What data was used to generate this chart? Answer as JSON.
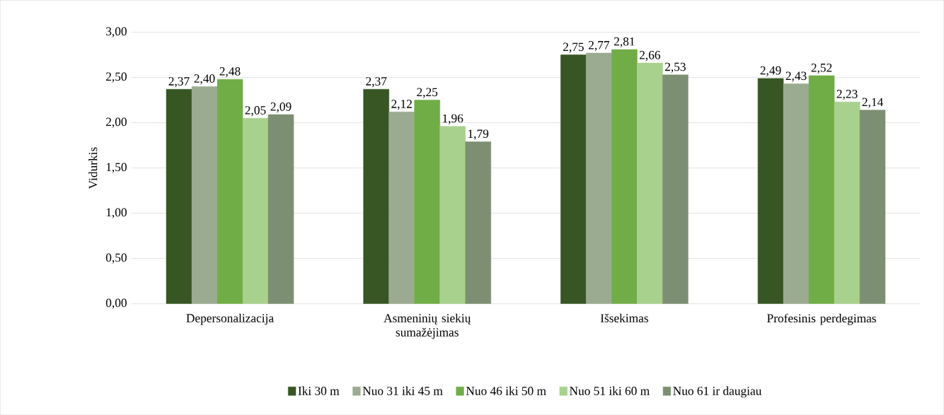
{
  "chart_data": {
    "type": "bar",
    "ylabel": "Vidurkis",
    "categories": [
      "Depersonalizacija",
      "Asmeninių siekių sumažėjimas",
      "Išsekimas",
      "Profesinis perdegimas"
    ],
    "series": [
      {
        "name": "Iki 30 m",
        "color": "#375623",
        "values": [
          2.37,
          2.37,
          2.75,
          2.49
        ],
        "value_labels": [
          "2,37",
          "2,37",
          "2,75",
          "2,49"
        ]
      },
      {
        "name": "Nuo 31 iki 45 m",
        "color": "#9bab91",
        "values": [
          2.4,
          2.12,
          2.77,
          2.43
        ],
        "value_labels": [
          "2,40",
          "2,12",
          "2,77",
          "2,43"
        ]
      },
      {
        "name": "Nuo 46 iki 50 m",
        "color": "#70ad47",
        "values": [
          2.48,
          2.25,
          2.81,
          2.52
        ],
        "value_labels": [
          "2,48",
          "2,25",
          "2,81",
          "2,52"
        ]
      },
      {
        "name": "Nuo 51 iki 60 m",
        "color": "#a9d18e",
        "values": [
          2.05,
          1.96,
          2.66,
          2.23
        ],
        "value_labels": [
          "2,05",
          "1,96",
          "2,66",
          "2,23"
        ]
      },
      {
        "name": "Nuo 61 ir daugiau",
        "color": "#7d8f72",
        "values": [
          2.09,
          1.79,
          2.53,
          2.14
        ],
        "value_labels": [
          "2,09",
          "1,79",
          "2,53",
          "2,14"
        ]
      }
    ],
    "ylim": [
      0,
      3
    ],
    "yticks": [
      {
        "value": 0,
        "label": "0,00"
      },
      {
        "value": 0.5,
        "label": "0,50"
      },
      {
        "value": 1,
        "label": "1,00"
      },
      {
        "value": 1.5,
        "label": "1,50"
      },
      {
        "value": 2,
        "label": "2,00"
      },
      {
        "value": 2.5,
        "label": "2,50"
      },
      {
        "value": 3,
        "label": "3,00"
      }
    ],
    "grid": "y",
    "legend": "bottom"
  }
}
